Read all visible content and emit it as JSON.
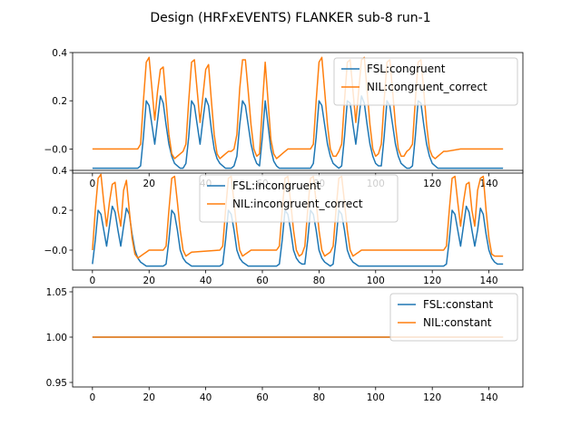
{
  "figure": {
    "title": "Design (HRFxEVENTS) FLANKER sub-8 run-1"
  },
  "colors": {
    "series1": "#1f77b4",
    "series2": "#ff7f0e"
  },
  "chart_data": [
    {
      "type": "line",
      "xlim": [
        -7,
        152
      ],
      "ylim": [
        -0.1,
        0.4
      ],
      "xticks": [
        0,
        20,
        40,
        60,
        80,
        100,
        120,
        140
      ],
      "yticks": [
        -0.0,
        0.2,
        0.4
      ],
      "ytick_labels": [
        "−0.0",
        "0.2",
        "0.4"
      ],
      "legend": "upper-right",
      "series": [
        {
          "name": "FSL:congruent",
          "color": "#1f77b4",
          "x": [
            0,
            16,
            17,
            18,
            19,
            20,
            21,
            22,
            23,
            24,
            25,
            26,
            27,
            28,
            29,
            30,
            31,
            32,
            33,
            34,
            35,
            36,
            37,
            38,
            39,
            40,
            41,
            42,
            43,
            44,
            45,
            46,
            47,
            48,
            49,
            50,
            51,
            52,
            53,
            54,
            55,
            56,
            57,
            58,
            59,
            60,
            61,
            62,
            63,
            64,
            65,
            66,
            67,
            68,
            69,
            70,
            71,
            72,
            73,
            74,
            75,
            76,
            77,
            78,
            79,
            80,
            81,
            82,
            83,
            84,
            85,
            86,
            87,
            88,
            89,
            90,
            91,
            92,
            93,
            94,
            95,
            96,
            97,
            98,
            99,
            100,
            101,
            102,
            103,
            104,
            105,
            106,
            107,
            108,
            109,
            110,
            111,
            112,
            113,
            114,
            115,
            116,
            117,
            118,
            119,
            120,
            121,
            122,
            123,
            124,
            125,
            130,
            145
          ],
          "y": [
            -0.08,
            -0.08,
            -0.07,
            0.05,
            0.2,
            0.18,
            0.1,
            0.02,
            0.12,
            0.22,
            0.19,
            0.1,
            0.02,
            -0.03,
            -0.06,
            -0.07,
            -0.08,
            -0.08,
            -0.06,
            0.05,
            0.2,
            0.18,
            0.1,
            0.02,
            0.12,
            0.21,
            0.18,
            0.08,
            0.0,
            -0.04,
            -0.06,
            -0.07,
            -0.08,
            -0.08,
            -0.08,
            -0.07,
            -0.03,
            0.1,
            0.2,
            0.18,
            0.1,
            0.02,
            -0.03,
            -0.06,
            -0.07,
            0.05,
            0.2,
            0.1,
            0.0,
            -0.05,
            -0.07,
            -0.08,
            -0.08,
            -0.08,
            -0.08,
            -0.08,
            -0.08,
            -0.08,
            -0.08,
            -0.08,
            -0.08,
            -0.08,
            -0.08,
            -0.06,
            0.05,
            0.2,
            0.18,
            0.1,
            0.02,
            -0.03,
            -0.06,
            -0.07,
            -0.08,
            -0.07,
            0.05,
            0.2,
            0.19,
            0.1,
            0.02,
            0.12,
            0.22,
            0.19,
            0.1,
            0.02,
            -0.03,
            -0.06,
            -0.07,
            -0.07,
            0.05,
            0.2,
            0.18,
            0.1,
            0.02,
            -0.03,
            -0.06,
            -0.07,
            -0.08,
            -0.08,
            -0.07,
            0.05,
            0.2,
            0.19,
            0.1,
            0.02,
            -0.03,
            -0.06,
            -0.07,
            -0.08,
            -0.08,
            -0.08,
            -0.08,
            -0.08,
            -0.08
          ]
        },
        {
          "name": "NIL:congruent_correct",
          "color": "#ff7f0e",
          "x": [
            0,
            16,
            17,
            18,
            19,
            20,
            21,
            22,
            23,
            24,
            25,
            26,
            27,
            28,
            29,
            30,
            31,
            32,
            33,
            34,
            35,
            36,
            37,
            38,
            39,
            40,
            41,
            42,
            43,
            44,
            45,
            46,
            47,
            48,
            49,
            50,
            51,
            52,
            53,
            54,
            55,
            56,
            57,
            58,
            59,
            60,
            61,
            62,
            63,
            64,
            65,
            66,
            67,
            68,
            69,
            70,
            71,
            72,
            73,
            74,
            75,
            76,
            77,
            78,
            79,
            80,
            81,
            82,
            83,
            84,
            85,
            86,
            87,
            88,
            89,
            90,
            91,
            92,
            93,
            94,
            95,
            96,
            97,
            98,
            99,
            100,
            101,
            102,
            103,
            104,
            105,
            106,
            107,
            108,
            109,
            110,
            111,
            112,
            113,
            114,
            115,
            116,
            117,
            118,
            119,
            120,
            121,
            122,
            123,
            124,
            125,
            130,
            145
          ],
          "y": [
            0.0,
            0.0,
            0.02,
            0.2,
            0.36,
            0.38,
            0.25,
            0.12,
            0.24,
            0.33,
            0.34,
            0.2,
            0.06,
            -0.02,
            -0.04,
            -0.03,
            -0.02,
            -0.01,
            0.02,
            0.2,
            0.36,
            0.37,
            0.24,
            0.11,
            0.22,
            0.33,
            0.35,
            0.2,
            0.06,
            -0.02,
            -0.04,
            -0.03,
            -0.02,
            -0.01,
            -0.01,
            0.0,
            0.06,
            0.25,
            0.37,
            0.37,
            0.24,
            0.1,
            0.0,
            -0.03,
            -0.02,
            0.18,
            0.36,
            0.2,
            0.04,
            -0.02,
            -0.04,
            -0.03,
            -0.02,
            -0.01,
            0.0,
            0.0,
            0.0,
            0.0,
            0.0,
            0.0,
            0.0,
            0.0,
            0.0,
            0.02,
            0.2,
            0.36,
            0.38,
            0.24,
            0.1,
            0.0,
            -0.03,
            -0.03,
            -0.01,
            0.02,
            0.2,
            0.36,
            0.37,
            0.24,
            0.11,
            0.24,
            0.37,
            0.38,
            0.24,
            0.1,
            0.0,
            -0.03,
            -0.02,
            0.02,
            0.2,
            0.36,
            0.37,
            0.24,
            0.1,
            0.0,
            -0.03,
            -0.03,
            -0.01,
            0.0,
            0.02,
            0.2,
            0.36,
            0.37,
            0.24,
            0.1,
            0.0,
            -0.03,
            -0.04,
            -0.03,
            -0.02,
            -0.01,
            -0.01,
            0.0,
            0.0
          ]
        }
      ]
    },
    {
      "type": "line",
      "xlim": [
        -7,
        152
      ],
      "ylim": [
        -0.1,
        0.4
      ],
      "xticks": [
        0,
        20,
        40,
        60,
        80,
        100,
        120,
        140
      ],
      "yticks": [
        -0.0,
        0.2,
        0.4
      ],
      "ytick_labels": [
        "−0.0",
        "0.2",
        "0.4"
      ],
      "legend": "upper-center",
      "series": [
        {
          "name": "FSL:incongruent",
          "color": "#1f77b4",
          "x": [
            0,
            1,
            2,
            3,
            4,
            5,
            6,
            7,
            8,
            9,
            10,
            11,
            12,
            13,
            14,
            15,
            16,
            17,
            18,
            19,
            20,
            25,
            26,
            27,
            28,
            29,
            30,
            31,
            32,
            33,
            34,
            35,
            45,
            46,
            47,
            48,
            49,
            50,
            51,
            52,
            53,
            54,
            55,
            56,
            57,
            58,
            65,
            66,
            67,
            68,
            69,
            70,
            71,
            72,
            73,
            74,
            75,
            76,
            77,
            78,
            79,
            80,
            81,
            82,
            83,
            84,
            85,
            86,
            87,
            88,
            89,
            90,
            91,
            92,
            93,
            94,
            95,
            96,
            97,
            124,
            125,
            126,
            127,
            128,
            129,
            130,
            131,
            132,
            133,
            134,
            135,
            136,
            137,
            138,
            139,
            140,
            141,
            142,
            143,
            144,
            145
          ],
          "y": [
            -0.07,
            0.05,
            0.2,
            0.18,
            0.1,
            0.02,
            0.12,
            0.22,
            0.19,
            0.1,
            0.02,
            0.12,
            0.21,
            0.18,
            0.08,
            0.0,
            -0.04,
            -0.06,
            -0.07,
            -0.08,
            -0.08,
            -0.08,
            -0.07,
            0.05,
            0.2,
            0.18,
            0.1,
            0.0,
            -0.04,
            -0.06,
            -0.07,
            -0.08,
            -0.08,
            -0.07,
            0.05,
            0.2,
            0.18,
            0.1,
            0.0,
            -0.04,
            -0.06,
            -0.07,
            -0.08,
            -0.08,
            -0.08,
            -0.08,
            -0.08,
            -0.07,
            0.05,
            0.2,
            0.18,
            0.1,
            0.0,
            -0.04,
            -0.06,
            -0.07,
            -0.07,
            0.05,
            0.2,
            0.18,
            0.1,
            0.0,
            -0.04,
            -0.06,
            -0.07,
            -0.08,
            -0.07,
            0.05,
            0.2,
            0.18,
            0.1,
            0.0,
            -0.04,
            -0.06,
            -0.07,
            -0.08,
            -0.08,
            -0.08,
            -0.08,
            -0.08,
            -0.07,
            0.05,
            0.2,
            0.18,
            0.1,
            0.02,
            0.12,
            0.22,
            0.19,
            0.1,
            0.02,
            0.1,
            0.21,
            0.18,
            0.08,
            0.0,
            -0.04,
            -0.06,
            -0.07,
            -0.07,
            -0.07
          ]
        },
        {
          "name": "NIL:incongruent_correct",
          "color": "#ff7f0e",
          "x": [
            0,
            1,
            2,
            3,
            4,
            5,
            6,
            7,
            8,
            9,
            10,
            11,
            12,
            13,
            14,
            15,
            16,
            17,
            18,
            19,
            20,
            25,
            26,
            27,
            28,
            29,
            30,
            31,
            32,
            33,
            34,
            35,
            45,
            46,
            47,
            48,
            49,
            50,
            51,
            52,
            53,
            54,
            55,
            56,
            57,
            58,
            65,
            66,
            67,
            68,
            69,
            70,
            71,
            72,
            73,
            74,
            75,
            76,
            77,
            78,
            79,
            80,
            81,
            82,
            83,
            84,
            85,
            86,
            87,
            88,
            89,
            90,
            91,
            92,
            93,
            94,
            95,
            96,
            97,
            124,
            125,
            126,
            127,
            128,
            129,
            130,
            131,
            132,
            133,
            134,
            135,
            136,
            137,
            138,
            139,
            140,
            141,
            142,
            143,
            144,
            145
          ],
          "y": [
            0.0,
            0.2,
            0.36,
            0.38,
            0.24,
            0.12,
            0.24,
            0.33,
            0.34,
            0.2,
            0.12,
            0.3,
            0.35,
            0.2,
            0.06,
            -0.02,
            -0.04,
            -0.03,
            -0.02,
            -0.01,
            0.0,
            0.0,
            0.02,
            0.2,
            0.36,
            0.37,
            0.24,
            0.1,
            0.0,
            -0.03,
            -0.02,
            -0.01,
            0.0,
            0.02,
            0.2,
            0.36,
            0.37,
            0.24,
            0.1,
            0.0,
            -0.03,
            -0.02,
            -0.01,
            0.0,
            0.0,
            0.0,
            0.0,
            0.02,
            0.2,
            0.36,
            0.37,
            0.24,
            0.1,
            0.0,
            -0.03,
            -0.02,
            0.02,
            0.2,
            0.36,
            0.37,
            0.24,
            0.1,
            0.0,
            -0.03,
            -0.02,
            -0.01,
            0.02,
            0.2,
            0.36,
            0.37,
            0.24,
            0.1,
            0.0,
            -0.03,
            -0.02,
            -0.01,
            0.0,
            0.0,
            0.0,
            0.0,
            0.02,
            0.2,
            0.36,
            0.37,
            0.24,
            0.12,
            0.24,
            0.33,
            0.34,
            0.2,
            0.12,
            0.3,
            0.36,
            0.37,
            0.2,
            0.06,
            -0.02,
            -0.03,
            -0.03,
            -0.03,
            -0.03
          ]
        }
      ]
    },
    {
      "type": "line",
      "xlim": [
        -7,
        152
      ],
      "ylim": [
        0.945,
        1.055
      ],
      "xticks": [
        0,
        20,
        40,
        60,
        80,
        100,
        120,
        140
      ],
      "yticks": [
        0.95,
        1.0,
        1.05
      ],
      "ytick_labels": [
        "0.95",
        "1.00",
        "1.05"
      ],
      "legend": "upper-right",
      "series": [
        {
          "name": "FSL:constant",
          "color": "#1f77b4",
          "x": [
            0,
            145
          ],
          "y": [
            1.0,
            1.0
          ]
        },
        {
          "name": "NIL:constant",
          "color": "#ff7f0e",
          "x": [
            0,
            145
          ],
          "y": [
            1.0,
            1.0
          ]
        }
      ]
    }
  ]
}
